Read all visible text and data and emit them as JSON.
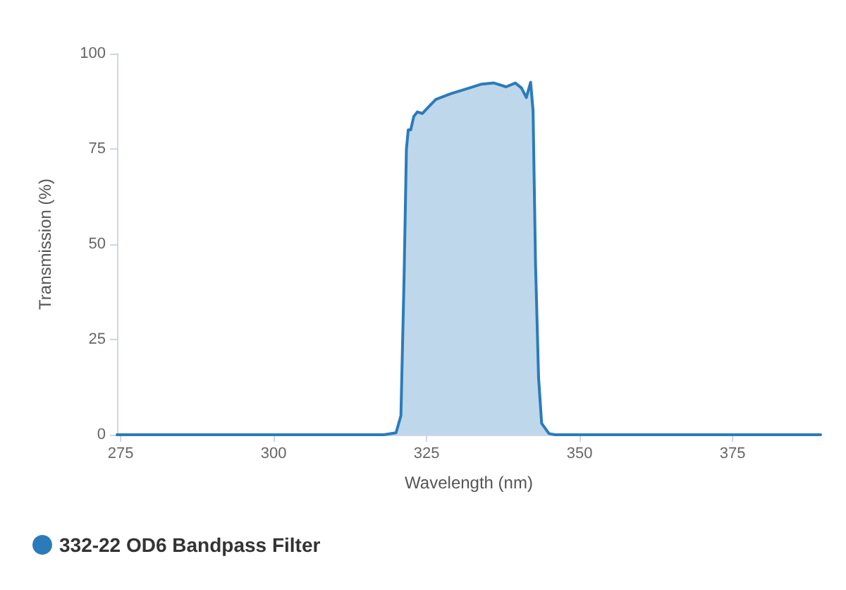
{
  "chart_data": {
    "type": "area",
    "xlabel": "Wavelength (nm)",
    "ylabel": "Transmission (%)",
    "xlim": [
      274.4,
      389.4
    ],
    "xticks": [
      275,
      300,
      325,
      350,
      375
    ],
    "ylim": [
      0,
      100
    ],
    "yticks": [
      0,
      25,
      50,
      75,
      100
    ],
    "grid": false,
    "legend": "bottom left",
    "marker": "none",
    "line_style": "solid",
    "series": [
      {
        "name": "332-22 OD6 Bandpass Filter",
        "color": "#2b7bba",
        "x": [
          274.4,
          318,
          320,
          320.8,
          321.3,
          321.7,
          322.0,
          322.4,
          322.9,
          323.5,
          324.3,
          325.3,
          326.5,
          329,
          332,
          334,
          336,
          338,
          339.5,
          340.5,
          341.3,
          342.0,
          342.4,
          342.8,
          343.3,
          343.8,
          345,
          346,
          389.4
        ],
        "values": [
          0,
          0,
          0.5,
          5,
          40,
          75,
          80,
          80,
          83.5,
          84.7,
          84.3,
          86,
          88,
          89.5,
          91,
          92,
          92.3,
          91.3,
          92.3,
          91,
          88.5,
          92.5,
          85,
          45,
          15,
          3,
          0.3,
          0,
          0
        ]
      }
    ]
  }
}
